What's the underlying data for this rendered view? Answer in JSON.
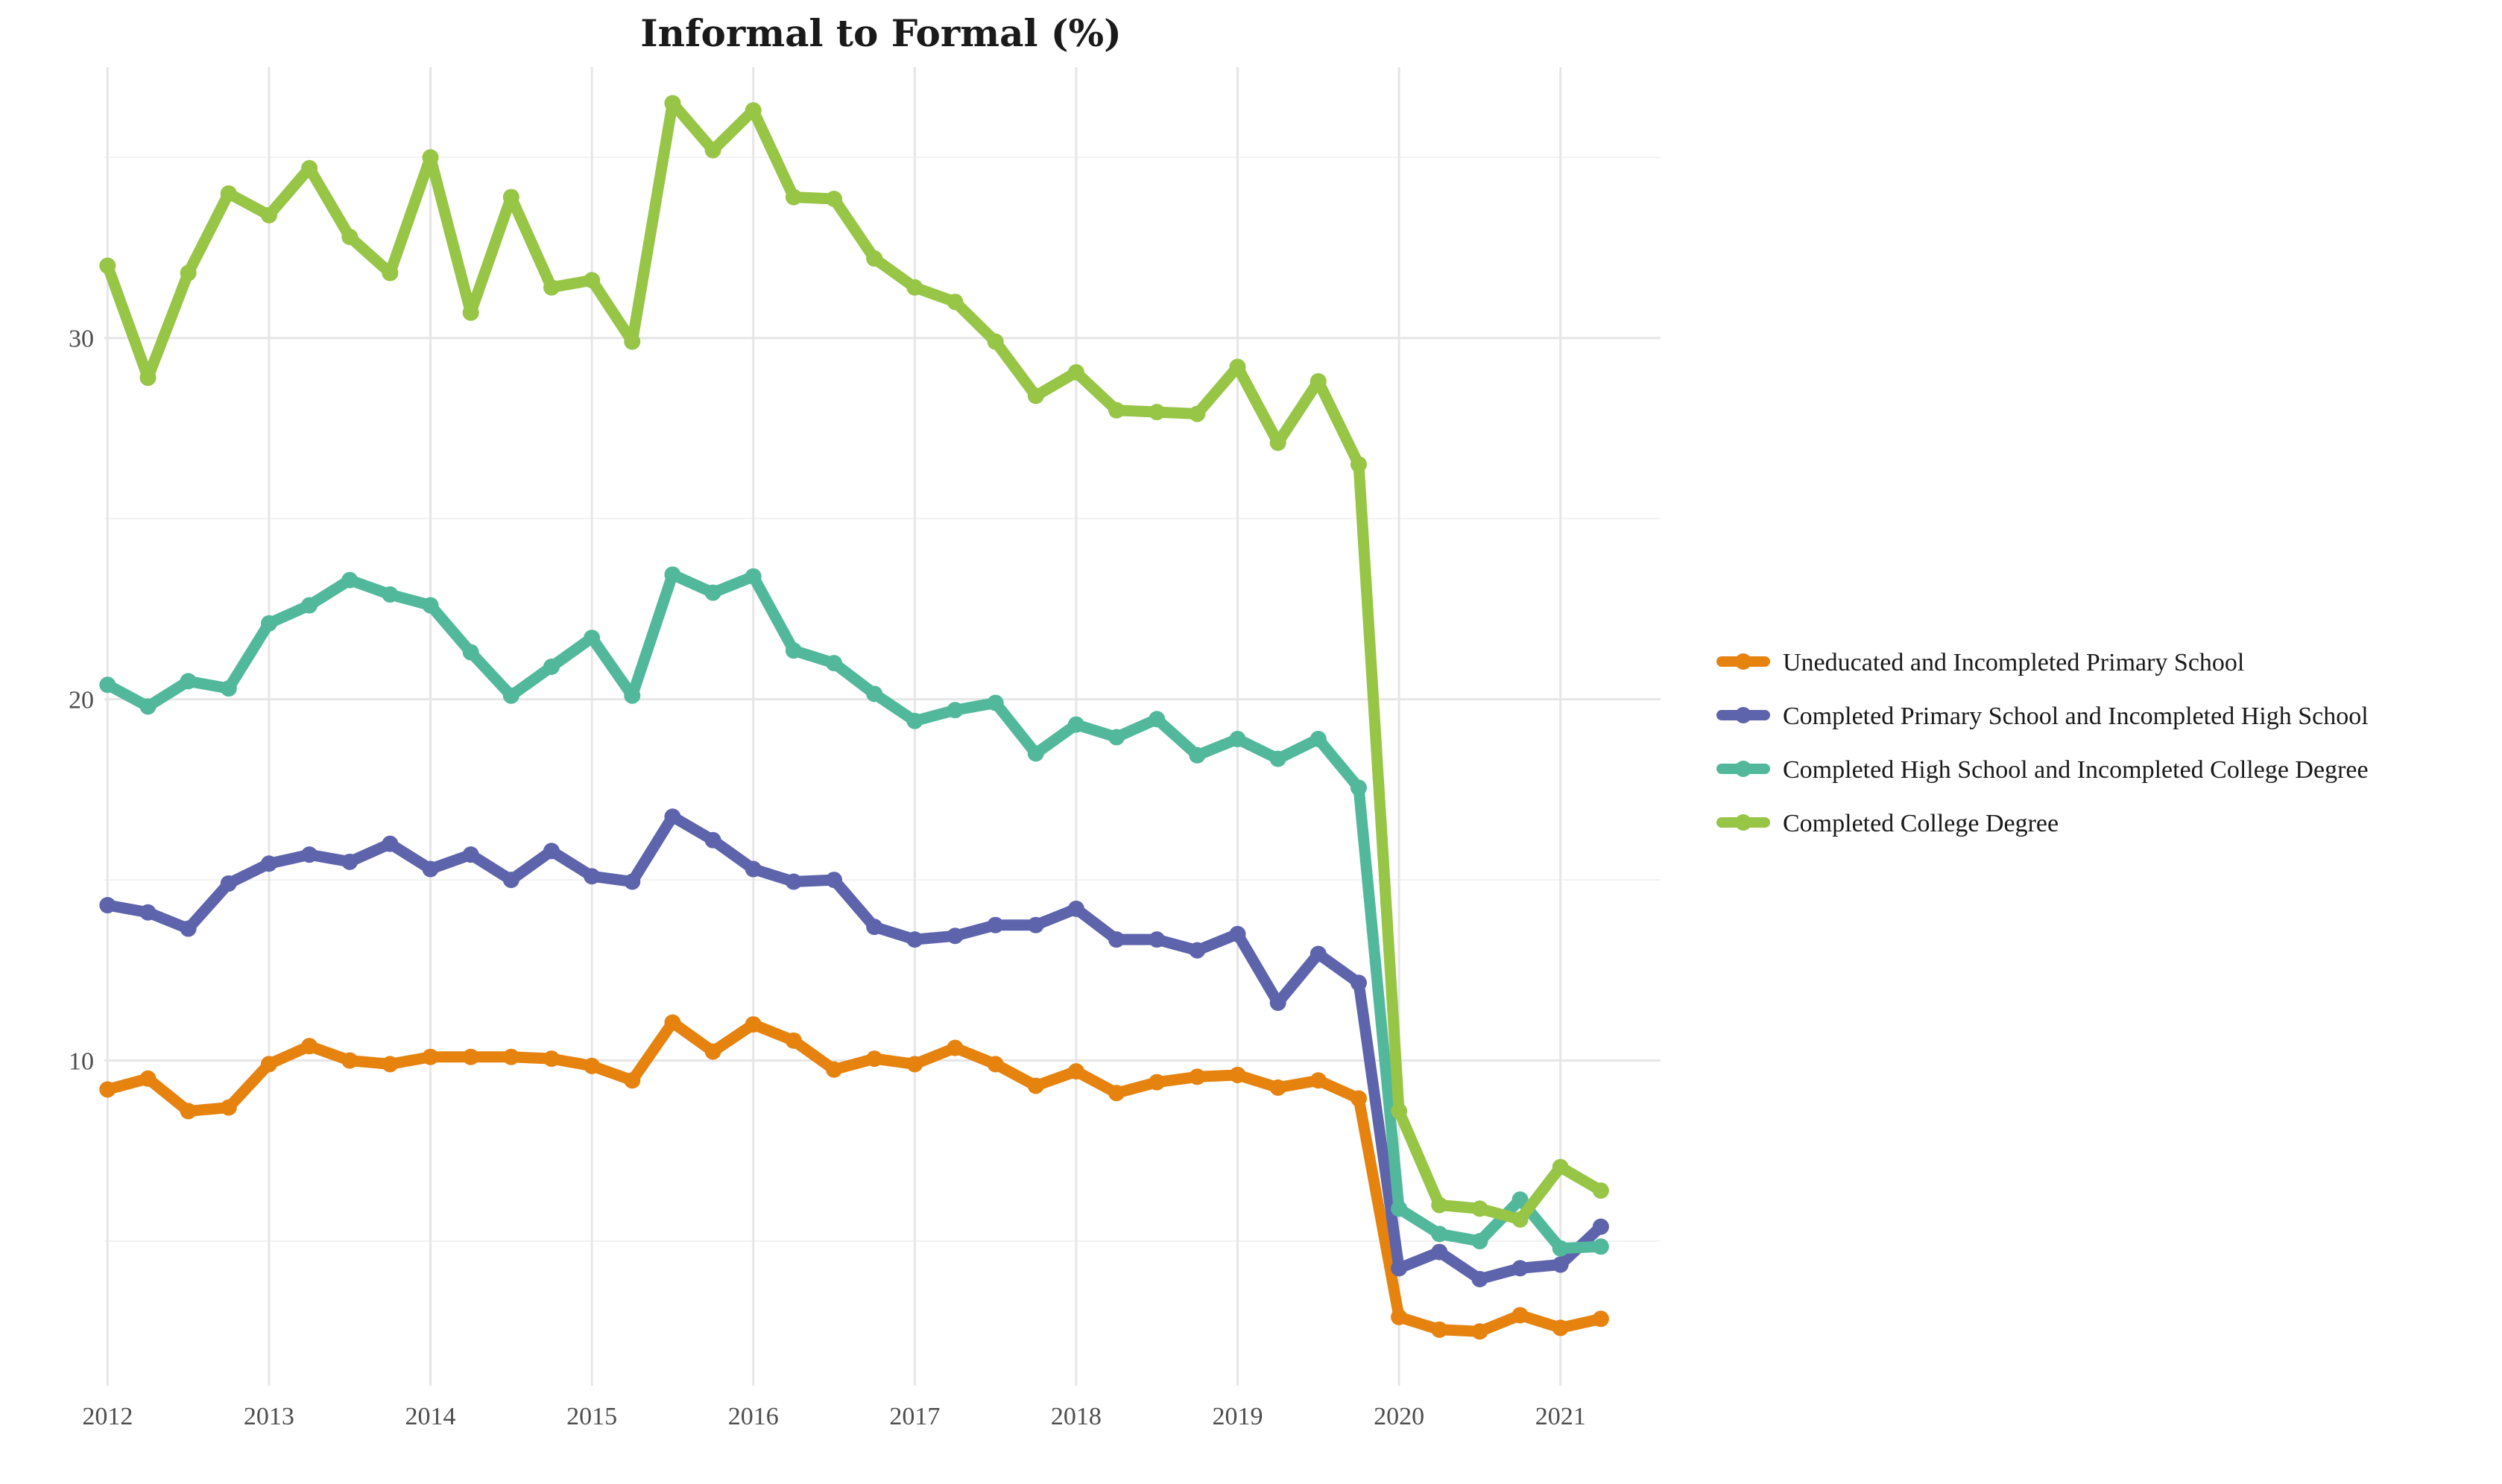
{
  "chart_data": {
    "type": "line",
    "title": "Informal to Formal (%)",
    "xlabel": "",
    "ylabel": "",
    "x_ticks": [
      "2012",
      "2013",
      "2014",
      "2015",
      "2016",
      "2017",
      "2018",
      "2019",
      "2020",
      "2021"
    ],
    "y_ticks": [
      "10",
      "20",
      "30"
    ],
    "xlim": [
      2011.98,
      2021.62
    ],
    "ylim": [
      1,
      37.5
    ],
    "grid": true,
    "legend_position": "right",
    "x": [
      2012.0,
      2012.25,
      2012.5,
      2012.75,
      2013.0,
      2013.25,
      2013.5,
      2013.75,
      2014.0,
      2014.25,
      2014.5,
      2014.75,
      2015.0,
      2015.25,
      2015.5,
      2015.75,
      2016.0,
      2016.25,
      2016.5,
      2016.75,
      2017.0,
      2017.25,
      2017.5,
      2017.75,
      2018.0,
      2018.25,
      2018.5,
      2018.75,
      2019.0,
      2019.25,
      2019.5,
      2019.75,
      2020.0,
      2020.25,
      2020.5,
      2020.75,
      2021.0,
      2021.25
    ],
    "series": [
      {
        "name": "Uneducated and Incompleted Primary School",
        "color": "#e6820e",
        "values": [
          9.2,
          9.5,
          8.6,
          8.7,
          9.9,
          10.4,
          10.0,
          9.9,
          10.1,
          10.1,
          10.1,
          10.05,
          9.85,
          9.45,
          11.05,
          10.25,
          11.0,
          10.55,
          9.75,
          10.05,
          9.9,
          10.35,
          9.9,
          9.3,
          9.7,
          9.1,
          9.4,
          9.55,
          9.6,
          9.25,
          9.45,
          8.95,
          2.9,
          2.55,
          2.5,
          2.95,
          2.6,
          2.85
        ]
      },
      {
        "name": "Completed Primary School and Incompleted High School",
        "color": "#5d64ab",
        "values": [
          14.3,
          14.1,
          13.65,
          14.9,
          15.45,
          15.7,
          15.5,
          16.0,
          15.3,
          15.7,
          15.0,
          15.8,
          15.1,
          14.95,
          16.75,
          16.1,
          15.3,
          14.95,
          15.0,
          13.7,
          13.35,
          13.45,
          13.75,
          13.75,
          14.2,
          13.35,
          13.35,
          13.05,
          13.5,
          11.6,
          12.95,
          12.15,
          4.25,
          4.7,
          3.95,
          4.25,
          4.35,
          5.4
        ]
      },
      {
        "name": "Completed High School and Incompleted College Degree",
        "color": "#52b89c",
        "values": [
          20.4,
          19.8,
          20.5,
          20.3,
          22.1,
          22.6,
          23.3,
          22.9,
          22.6,
          21.3,
          20.1,
          20.9,
          21.7,
          20.1,
          23.45,
          22.95,
          23.4,
          21.35,
          21.0,
          20.15,
          19.4,
          19.7,
          19.9,
          18.5,
          19.3,
          18.95,
          19.45,
          18.45,
          18.9,
          18.35,
          18.9,
          17.55,
          5.9,
          5.2,
          5.0,
          6.15,
          4.8,
          4.85
        ]
      },
      {
        "name": "Completed College Degree",
        "color": "#97c545",
        "values": [
          32.0,
          28.9,
          31.8,
          34.0,
          33.4,
          34.7,
          32.8,
          31.8,
          35.0,
          30.7,
          33.9,
          31.4,
          31.6,
          29.9,
          36.5,
          35.2,
          36.3,
          33.9,
          33.85,
          32.2,
          31.4,
          31.0,
          29.9,
          28.4,
          29.05,
          28.0,
          27.95,
          27.9,
          29.2,
          27.1,
          28.8,
          26.5,
          8.6,
          6.0,
          5.9,
          5.6,
          7.05,
          6.4
        ]
      }
    ]
  }
}
